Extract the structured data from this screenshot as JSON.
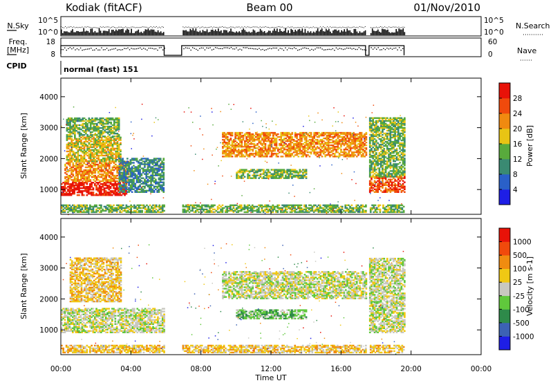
{
  "header": {
    "station": "Kodiak (fitACF)",
    "beam": "Beam 00",
    "date": "01/Nov/2010"
  },
  "panels": {
    "nsky_label": "N.Sky",
    "nsearch_label": "N.Search",
    "nsky_ticks": [
      "10^5",
      "10^0"
    ],
    "nsearch_ticks": [
      "10^5",
      "10^0"
    ],
    "freq_label_1": "Freq.",
    "freq_label_2": "[MHz]",
    "freq_ticks": [
      "18",
      "8"
    ],
    "nave_label": "Nave",
    "nave_ticks": [
      "60",
      "0"
    ],
    "cpid_label": "CPID",
    "cpid_value": "normal (fast) 151"
  },
  "chart_data": [
    {
      "type": "heatmap",
      "name": "power",
      "ylabel": "Slant Range [km]",
      "xlabel": "",
      "ylim": [
        200,
        4600
      ],
      "yticks": [
        "1000",
        "2000",
        "3000",
        "4000"
      ],
      "colorbar_label": "Power [dB]",
      "colorbar_ticks": [
        "4",
        "8",
        "12",
        "16",
        "20",
        "24",
        "28"
      ],
      "colorbar_colors": [
        "#1e1ee6",
        "#2a60c8",
        "#3a8a72",
        "#58aa3c",
        "#e8c414",
        "#f08a10",
        "#f04a0c",
        "#e81208"
      ],
      "regions": [
        {
          "t0": 0.0,
          "t1": 3.7,
          "r0": 800,
          "r1": 1250,
          "level": 7
        },
        {
          "t0": 0.2,
          "t1": 3.8,
          "r0": 1250,
          "r1": 1900,
          "level": 5
        },
        {
          "t0": 0.3,
          "t1": 3.4,
          "r0": 1900,
          "r1": 2700,
          "level": 4
        },
        {
          "t0": 0.3,
          "t1": 3.3,
          "r0": 2700,
          "r1": 3300,
          "level": 3
        },
        {
          "t0": 3.3,
          "t1": 5.9,
          "r0": 900,
          "r1": 2000,
          "level": 2
        },
        {
          "t0": 9.2,
          "t1": 17.4,
          "r0": 2050,
          "r1": 2850,
          "level": 5
        },
        {
          "t0": 10.0,
          "t1": 14.0,
          "r0": 1350,
          "r1": 1650,
          "level": 3
        },
        {
          "t0": 17.6,
          "t1": 19.6,
          "r0": 900,
          "r1": 1400,
          "level": 6
        },
        {
          "t0": 17.6,
          "t1": 19.6,
          "r0": 1400,
          "r1": 3300,
          "level": 3
        },
        {
          "t0": 0.0,
          "t1": 19.6,
          "r0": 250,
          "r1": 500,
          "level": 3
        }
      ]
    },
    {
      "type": "heatmap",
      "name": "velocity",
      "ylabel": "Slant Range [km]",
      "xlabel": "Time UT",
      "ylim": [
        200,
        4600
      ],
      "yticks": [
        "1000",
        "2000",
        "3000",
        "4000"
      ],
      "xticks": [
        "00:00",
        "04:00",
        "08:00",
        "12:00",
        "16:00",
        "20:00",
        "00:00"
      ],
      "xtick_hours": [
        0,
        4,
        8,
        12,
        16,
        20,
        24
      ],
      "colorbar_label": "Velocity [m s-1]",
      "colorbar_ticks": [
        "1000",
        "500",
        "100",
        "25",
        "-25",
        "-100",
        "-500",
        "-1000"
      ],
      "colorbar_colors": [
        "#1e1ee6",
        "#3c62b4",
        "#2e8a4a",
        "#60c83c",
        "#c8c8c0",
        "#f0c814",
        "#f08c10",
        "#f04a0c",
        "#e81208"
      ],
      "regions": [
        {
          "t0": 0.0,
          "t1": 5.9,
          "r0": 900,
          "r1": 1700,
          "level": 4
        },
        {
          "t0": 0.5,
          "t1": 3.4,
          "r0": 1900,
          "r1": 3300,
          "level": 5
        },
        {
          "t0": 9.2,
          "t1": 17.4,
          "r0": 2000,
          "r1": 2900,
          "level": 4
        },
        {
          "t0": 10.0,
          "t1": 14.0,
          "r0": 1350,
          "r1": 1650,
          "level": 3
        },
        {
          "t0": 17.6,
          "t1": 19.6,
          "r0": 900,
          "r1": 3300,
          "level": 4
        },
        {
          "t0": 0.0,
          "t1": 19.6,
          "r0": 250,
          "r1": 500,
          "level": 5
        }
      ]
    }
  ],
  "data_gaps": [
    [
      5.9,
      6.9
    ],
    [
      17.4,
      17.6
    ]
  ],
  "x_range": [
    0,
    24
  ]
}
